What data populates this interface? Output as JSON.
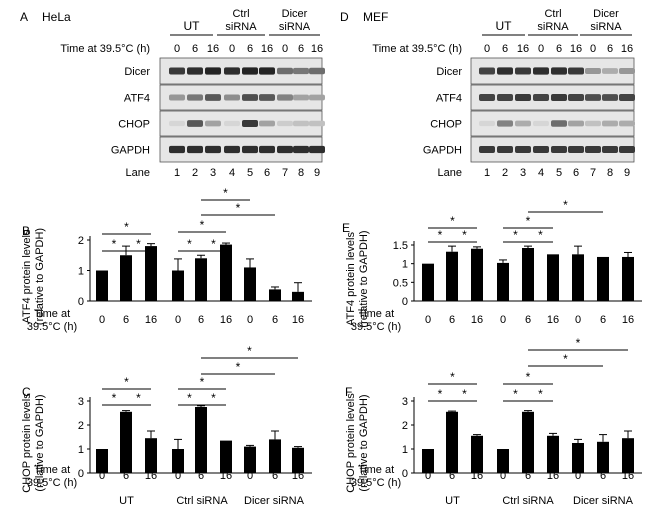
{
  "figure": {
    "panels": {
      "A": {
        "letter": "A",
        "cell": "HeLa"
      },
      "D": {
        "letter": "D",
        "cell": "MEF"
      }
    },
    "blot": {
      "groups": [
        "UT",
        "Ctrl\nsiRNA",
        "Dicer\nsiRNA"
      ],
      "time_label": "Time at 39.5°C (h)",
      "time_values": [
        "0",
        "6",
        "16",
        "0",
        "6",
        "16",
        "0",
        "6",
        "16"
      ],
      "rows": [
        "Dicer",
        "ATF4",
        "CHOP",
        "GAPDH"
      ],
      "lane_label": "Lane",
      "lanes": [
        "1",
        "2",
        "3",
        "4",
        "5",
        "6",
        "7",
        "8",
        "9"
      ]
    },
    "bar_common": {
      "x_time_label": "Time at\n39.5°C (h)",
      "x_groups": [
        "UT",
        "Ctrl siRNA",
        "Dicer siRNA"
      ],
      "star": "*"
    }
  },
  "chart_data": [
    {
      "panel": "B",
      "type": "bar",
      "ylabel": "ATF4 protein levels\n(relative to GAPDH)",
      "categories": [
        "0",
        "6",
        "16",
        "0",
        "6",
        "16",
        "0",
        "6",
        "16"
      ],
      "values": [
        1.0,
        1.5,
        1.8,
        1.0,
        1.4,
        1.85,
        1.1,
        0.38,
        0.3
      ],
      "errors": [
        0.0,
        0.3,
        0.08,
        0.38,
        0.1,
        0.05,
        0.28,
        0.08,
        0.3
      ],
      "ylim": [
        0,
        2
      ],
      "yticks": [
        "0",
        "1",
        "2"
      ],
      "significance": [
        [
          0,
          1
        ],
        [
          1,
          2
        ],
        [
          0,
          2
        ],
        [
          3,
          4
        ],
        [
          4,
          5
        ],
        [
          3,
          5
        ],
        [
          4,
          7
        ]
      ]
    },
    {
      "panel": "C",
      "type": "bar",
      "ylabel": "CHOP protein levels\n(relative to GAPDH)",
      "categories": [
        "0",
        "6",
        "16",
        "0",
        "6",
        "16",
        "0",
        "6",
        "16"
      ],
      "values": [
        1.0,
        2.55,
        1.45,
        1.0,
        2.75,
        1.35,
        1.1,
        1.4,
        1.05
      ],
      "errors": [
        0.0,
        0.05,
        0.3,
        0.4,
        0.05,
        0.0,
        0.05,
        0.35,
        0.05
      ],
      "ylim": [
        0,
        3
      ],
      "yticks": [
        "0",
        "1",
        "2",
        "3"
      ],
      "significance": [
        [
          0,
          1
        ],
        [
          1,
          2
        ],
        [
          0,
          2
        ],
        [
          3,
          4
        ],
        [
          4,
          5
        ],
        [
          3,
          5
        ],
        [
          4,
          7
        ]
      ]
    },
    {
      "panel": "E",
      "type": "bar",
      "ylabel": "ATF4 protein levels\n(relative to GAPDH)",
      "categories": [
        "0",
        "6",
        "16",
        "0",
        "6",
        "16",
        "0",
        "6",
        "16"
      ],
      "values": [
        1.0,
        1.32,
        1.4,
        1.02,
        1.42,
        1.25,
        1.25,
        1.18,
        1.18
      ],
      "errors": [
        0.0,
        0.15,
        0.05,
        0.08,
        0.05,
        0.0,
        0.22,
        0.0,
        0.12
      ],
      "ylim": [
        0,
        1.5
      ],
      "yticks": [
        "0",
        "0.5",
        "1",
        "1.5"
      ],
      "significance": [
        [
          0,
          1
        ],
        [
          1,
          2
        ],
        [
          0,
          2
        ],
        [
          3,
          4
        ],
        [
          4,
          5
        ],
        [
          3,
          5
        ],
        [
          4,
          7
        ]
      ]
    },
    {
      "panel": "F",
      "type": "bar",
      "ylabel": "CHOP protein levels\n(relative to GAPDH)",
      "categories": [
        "0",
        "6",
        "16",
        "0",
        "6",
        "16",
        "0",
        "6",
        "16"
      ],
      "values": [
        1.0,
        2.55,
        1.55,
        1.0,
        2.55,
        1.55,
        1.25,
        1.3,
        1.45
      ],
      "errors": [
        0.0,
        0.03,
        0.05,
        0.0,
        0.05,
        0.1,
        0.15,
        0.3,
        0.3
      ],
      "ylim": [
        0,
        3
      ],
      "yticks": [
        "0",
        "1",
        "2",
        "3"
      ],
      "significance": [
        [
          0,
          1
        ],
        [
          1,
          2
        ],
        [
          0,
          2
        ],
        [
          3,
          4
        ],
        [
          4,
          5
        ],
        [
          3,
          5
        ],
        [
          4,
          7
        ]
      ]
    }
  ]
}
